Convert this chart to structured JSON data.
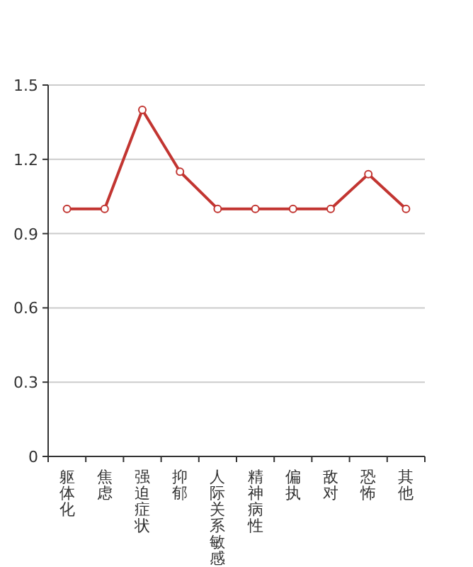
{
  "chart_data": {
    "type": "line",
    "categories": [
      "躯体化",
      "焦虑",
      "强迫症状",
      "抑郁",
      "人际关系敏感",
      "精神病性",
      "偏执",
      "敌对",
      "恐怖",
      "其他"
    ],
    "series": [
      {
        "color": "#c23531",
        "values": [
          1,
          1,
          1.4,
          1.15,
          1,
          1,
          1,
          1,
          1.14,
          1
        ]
      }
    ],
    "ylim": [
      0,
      1.5
    ],
    "yticks": [
      0,
      0.3,
      0.6,
      0.9,
      1.2,
      1.5
    ],
    "grid": "y",
    "marker": "circle",
    "line_style": "solid"
  }
}
